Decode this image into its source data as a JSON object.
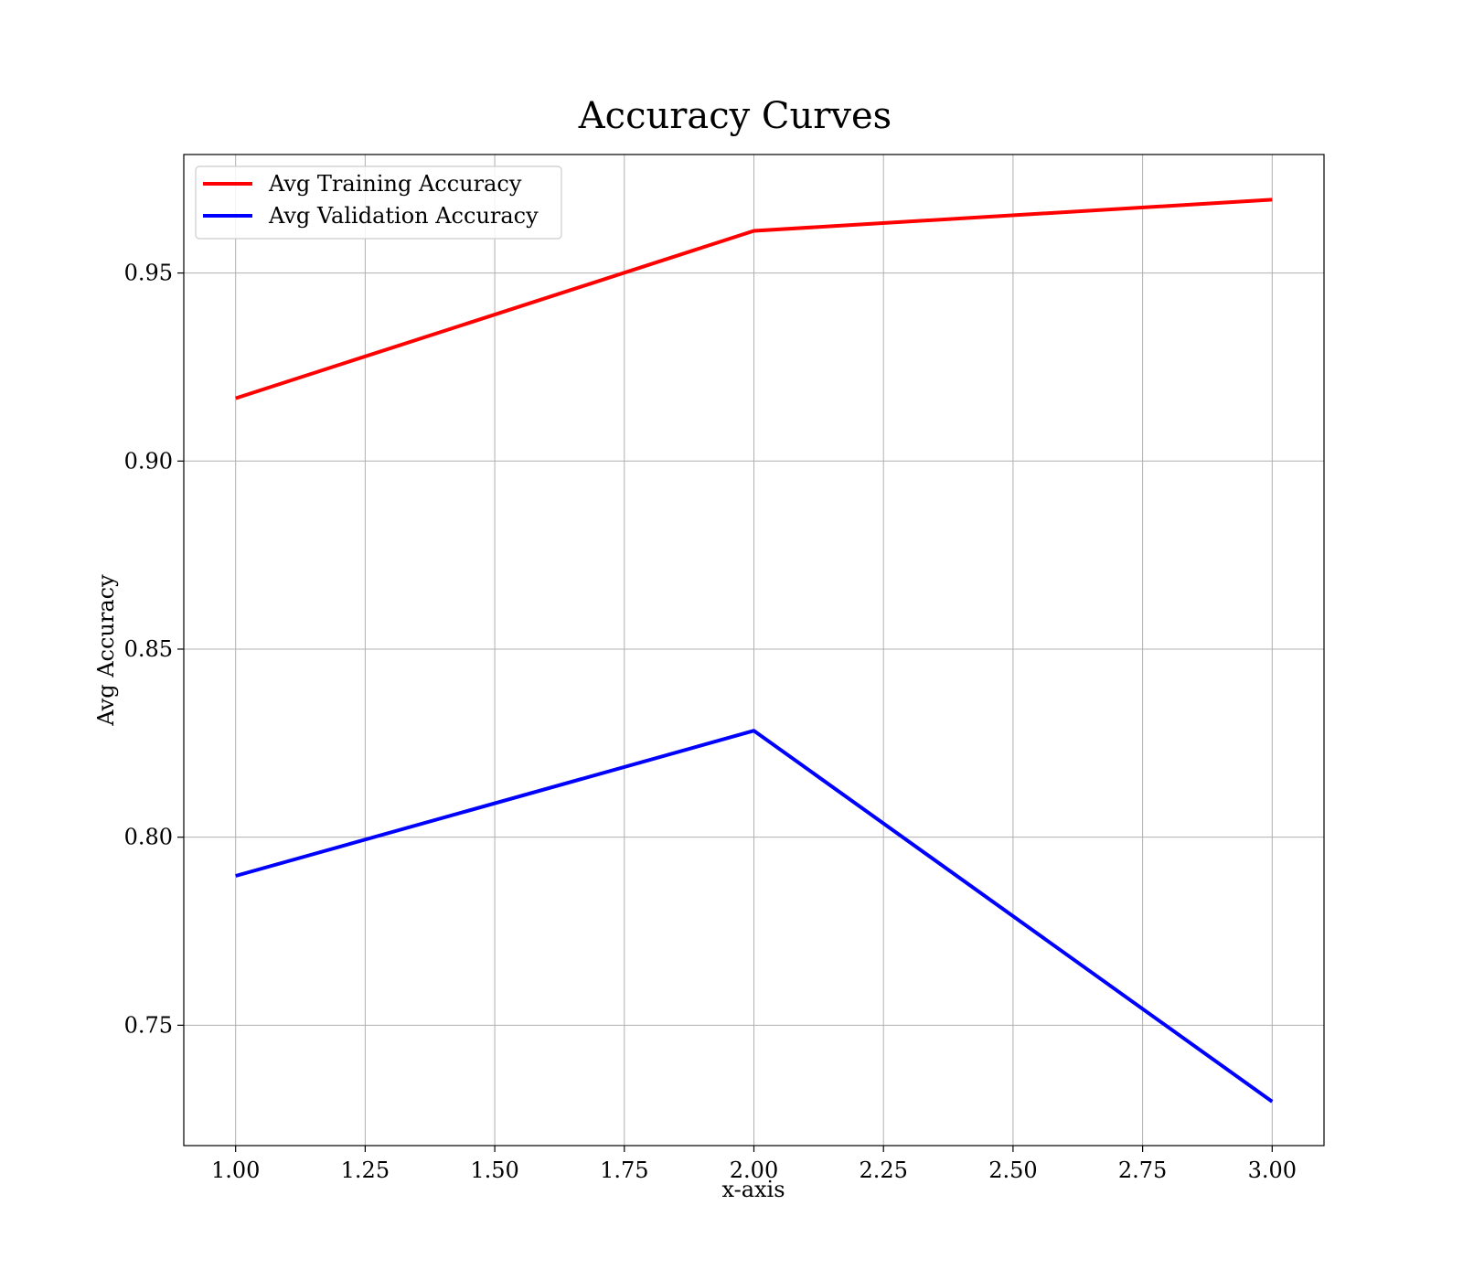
{
  "chart_data": {
    "type": "line",
    "title": "Accuracy Curves",
    "xlabel": "x-axis",
    "ylabel": "Avg Accuracy",
    "x": [
      1.0,
      2.0,
      3.0
    ],
    "series": [
      {
        "name": "Avg Training Accuracy",
        "color": "#ff0000",
        "values": [
          0.9167,
          0.9612,
          0.9695
        ]
      },
      {
        "name": "Avg Validation Accuracy",
        "color": "#0000ff",
        "values": [
          0.7897,
          0.8283,
          0.7297
        ]
      }
    ],
    "xlim": [
      0.9,
      3.1
    ],
    "ylim": [
      0.718,
      0.9815
    ],
    "xticks": [
      1.0,
      1.25,
      1.5,
      1.75,
      2.0,
      2.25,
      2.5,
      2.75,
      3.0
    ],
    "xtick_labels": [
      "1.00",
      "1.25",
      "1.50",
      "1.75",
      "2.00",
      "2.25",
      "2.50",
      "2.75",
      "3.00"
    ],
    "yticks": [
      0.75,
      0.8,
      0.85,
      0.9,
      0.95
    ],
    "ytick_labels": [
      "0.75",
      "0.80",
      "0.85",
      "0.90",
      "0.95"
    ],
    "grid": true,
    "legend_position": "top-left"
  }
}
